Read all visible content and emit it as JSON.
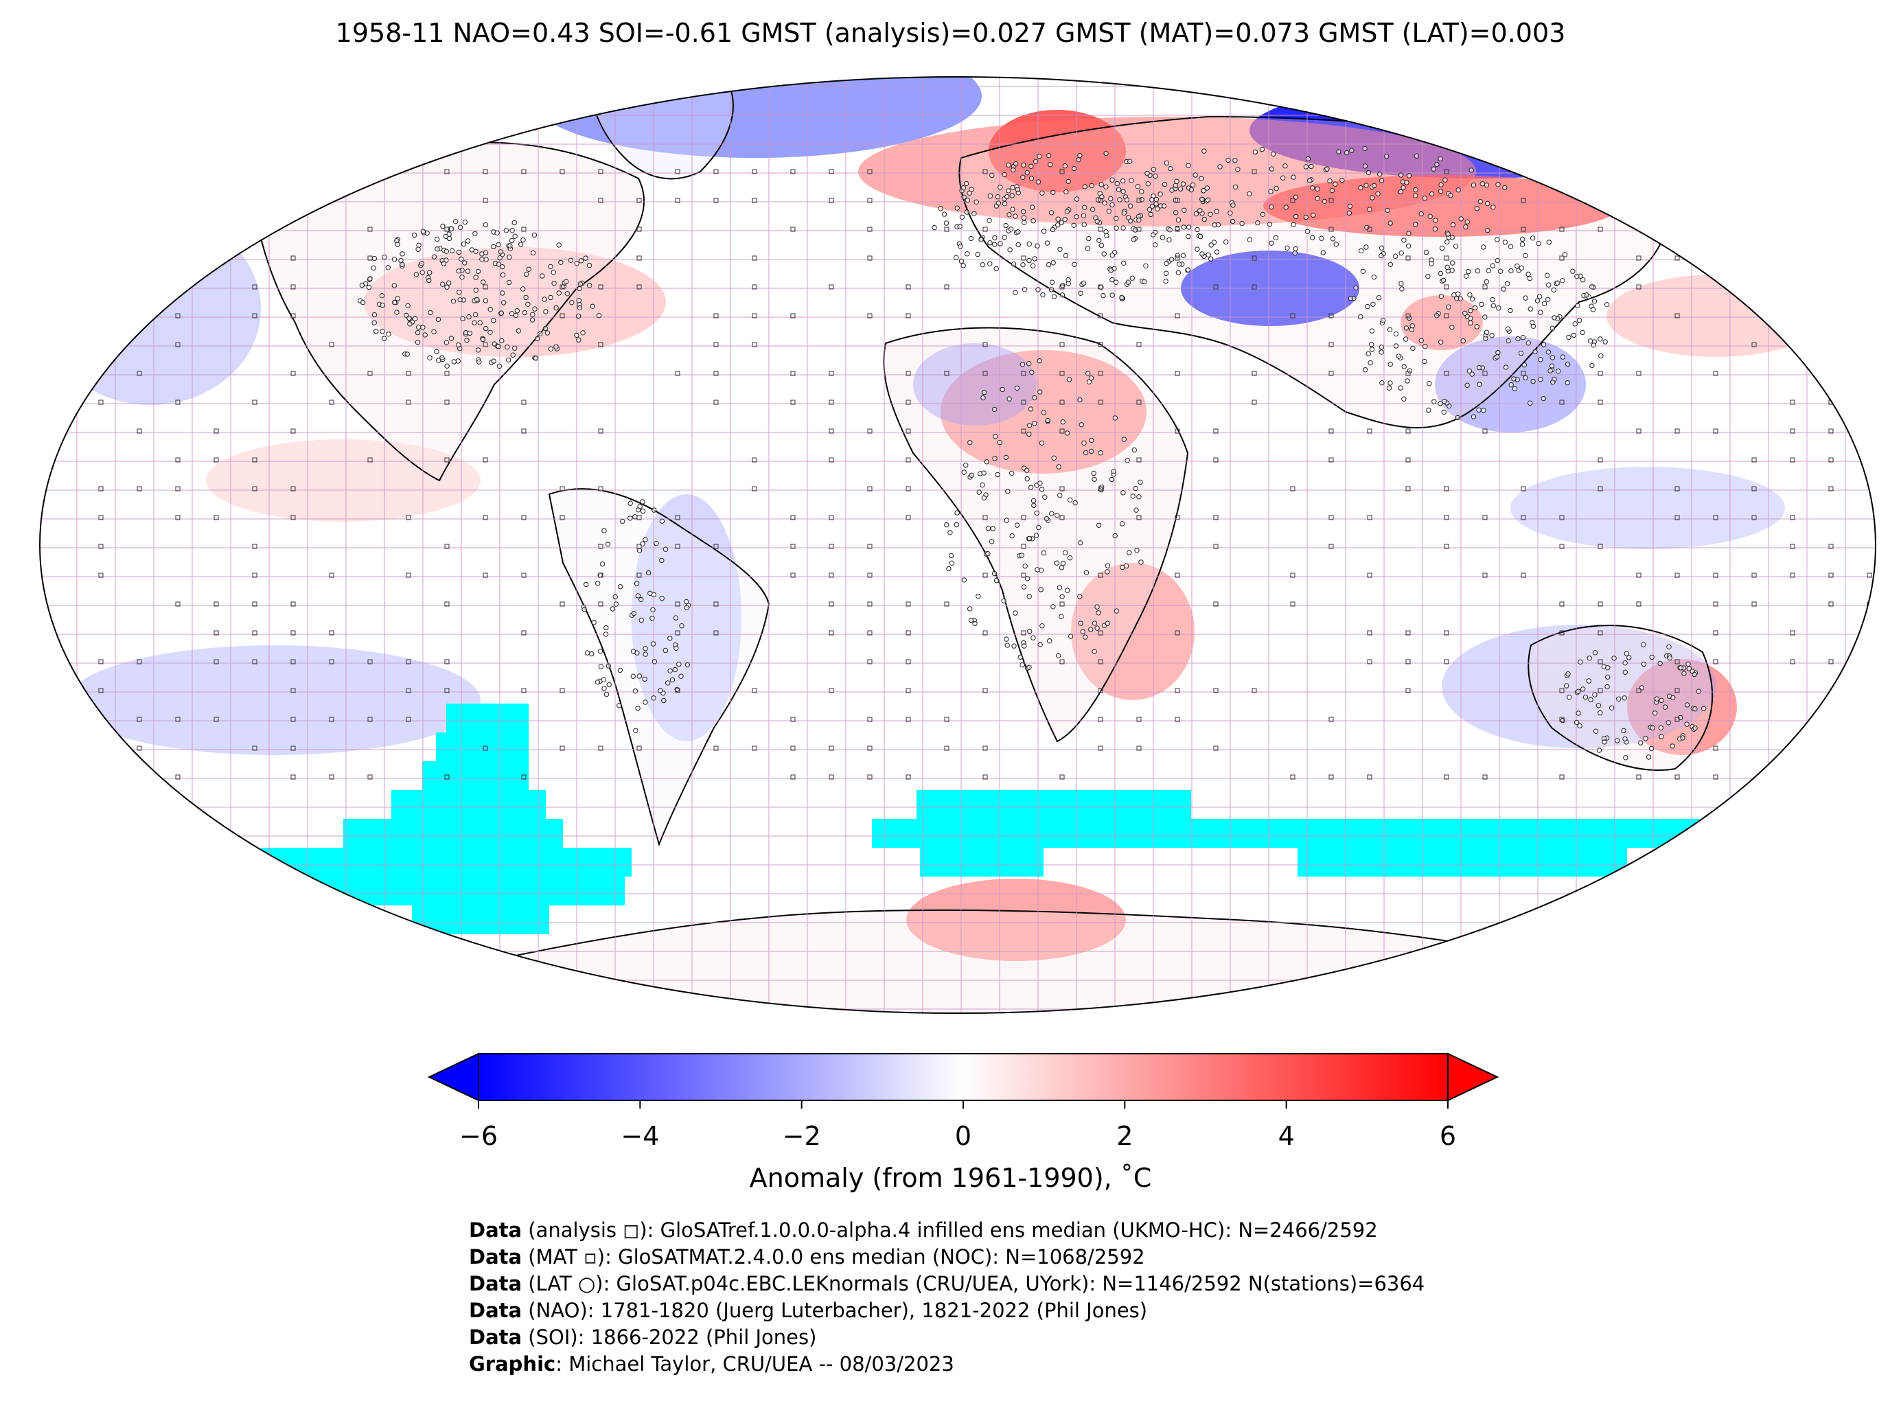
{
  "title": "1958-11 NAO=0.43 SOI=-0.61 GMST (analysis)=0.027 GMST (MAT)=0.073 GMST (LAT)=0.003",
  "map": {
    "projection": "Robinson",
    "gridlines": "on",
    "colors": {
      "cold": "#0000ff",
      "neutral": "#ffffff",
      "warm": "#ff0000",
      "missing": "#00ffff",
      "grid": "#c994c7",
      "coastline": "#000000"
    },
    "features": {
      "arctic_russia_cold": "cold",
      "siberia_band_warm": "warm",
      "scandinavia_warm": "warm",
      "central_asia_cold": "cold",
      "north_africa_warm": "warm",
      "southern_ocean": "missing"
    }
  },
  "colorbar": {
    "min": -6,
    "max": 6,
    "ticks": [
      "−6",
      "−4",
      "−2",
      "0",
      "2",
      "4",
      "6"
    ],
    "tick_values": [
      -6,
      -4,
      -2,
      0,
      2,
      4,
      6
    ],
    "extend": "both",
    "label": "Anomaly (from 1961-1990), ˚C",
    "colors": [
      "#0000ff",
      "#ffffff",
      "#ff0000"
    ]
  },
  "credits": [
    {
      "key": "Data",
      "text": " (analysis ◻): GloSATref.1.0.0.0-alpha.4 infilled ens median (UKMO-HC): N=2466/2592"
    },
    {
      "key": "Data",
      "text": " (MAT ▫): GloSATMAT.2.4.0.0 ens median (NOC): N=1068/2592"
    },
    {
      "key": "Data",
      "text": " (LAT ○): GloSAT.p04c.EBC.LEKnormals (CRU/UEA, UYork): N=1146/2592 N(stations)=6364"
    },
    {
      "key": "Data",
      "text": " (NAO): 1781-1820 (Juerg Luterbacher), 1821-2022 (Phil Jones)"
    },
    {
      "key": "Data",
      "text": " (SOI): 1866-2022 (Phil Jones)"
    },
    {
      "key": "Graphic",
      "text": ": Michael Taylor, CRU/UEA -- 08/03/2023"
    }
  ]
}
